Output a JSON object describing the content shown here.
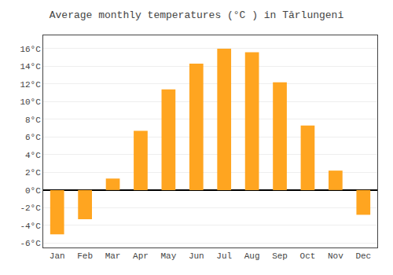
{
  "chart_data": {
    "type": "bar",
    "title": "Average monthly temperatures (°C ) in Tărlungeni",
    "categories": [
      "Jan",
      "Feb",
      "Mar",
      "Apr",
      "May",
      "Jun",
      "Jul",
      "Aug",
      "Sep",
      "Oct",
      "Nov",
      "Dec"
    ],
    "values": [
      -5.0,
      -3.3,
      1.3,
      6.7,
      11.4,
      14.3,
      16.0,
      15.6,
      12.2,
      7.3,
      2.2,
      -2.8
    ],
    "color": "#FFA520",
    "ylim": [
      -6.5,
      17.5
    ],
    "yticks": [
      {
        "value": -6,
        "label": "-6°C"
      },
      {
        "value": -4,
        "label": "-4°C"
      },
      {
        "value": -2,
        "label": "-2°C"
      },
      {
        "value": 0,
        "label": "0°C"
      },
      {
        "value": 2,
        "label": "2°C"
      },
      {
        "value": 4,
        "label": "4°C"
      },
      {
        "value": 6,
        "label": "6°C"
      },
      {
        "value": 8,
        "label": "8°C"
      },
      {
        "value": 10,
        "label": "10°C"
      },
      {
        "value": 12,
        "label": "12°C"
      },
      {
        "value": 14,
        "label": "14°C"
      },
      {
        "value": 16,
        "label": "16°C"
      }
    ],
    "grid": true
  }
}
